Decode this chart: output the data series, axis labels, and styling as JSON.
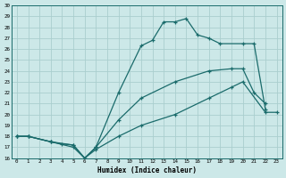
{
  "xlabel": "Humidex (Indice chaleur)",
  "bg_color": "#cce8e8",
  "grid_color": "#aacece",
  "line_color": "#1a6b6b",
  "xlim": [
    -0.5,
    23.5
  ],
  "ylim": [
    16,
    30
  ],
  "xticks": [
    0,
    1,
    2,
    3,
    4,
    5,
    6,
    7,
    8,
    9,
    10,
    11,
    12,
    13,
    14,
    15,
    16,
    17,
    18,
    19,
    20,
    21,
    22,
    23
  ],
  "yticks": [
    16,
    17,
    18,
    19,
    20,
    21,
    22,
    23,
    24,
    25,
    26,
    27,
    28,
    29,
    30
  ],
  "line1_x": [
    0,
    1,
    3,
    5,
    6,
    7,
    9,
    11,
    12,
    13,
    14,
    15,
    16,
    17,
    18,
    20,
    21,
    22
  ],
  "line1_y": [
    18,
    18,
    17.5,
    17,
    16,
    17,
    22,
    26.3,
    26.8,
    28.5,
    28.5,
    28.8,
    27.3,
    27,
    26.5,
    26.5,
    26.5,
    20.5
  ],
  "line2_x": [
    0,
    1,
    3,
    4,
    5,
    6,
    7,
    9,
    11,
    14,
    17,
    19,
    20,
    21,
    22
  ],
  "line2_y": [
    18,
    18,
    17.5,
    17.3,
    17.2,
    16.0,
    17.0,
    19.5,
    21.5,
    23.0,
    24.0,
    24.2,
    24.2,
    22.0,
    21.0
  ],
  "line3_x": [
    0,
    1,
    3,
    5,
    6,
    7,
    9,
    11,
    14,
    17,
    19,
    20,
    22,
    23
  ],
  "line3_y": [
    18,
    18,
    17.5,
    17.2,
    16.0,
    16.8,
    18.0,
    19.0,
    20.0,
    21.5,
    22.5,
    23.0,
    20.2,
    20.2
  ]
}
